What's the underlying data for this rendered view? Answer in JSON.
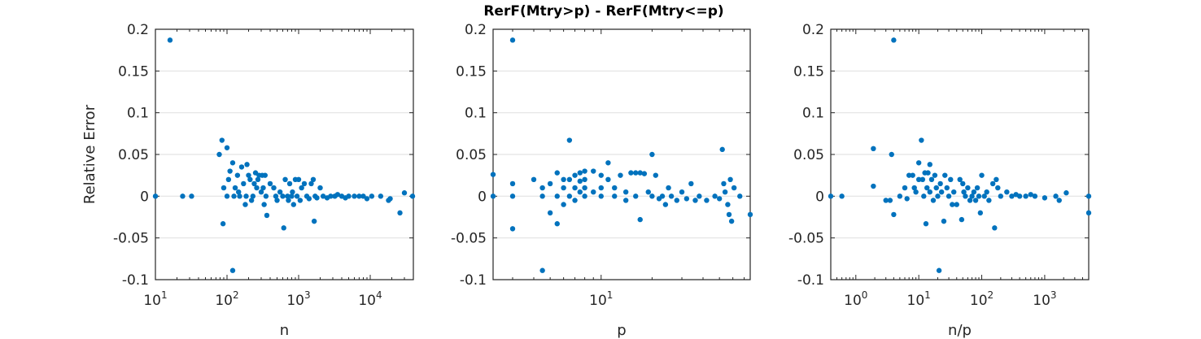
{
  "figure": {
    "title": "RerF(Mtry>p) - RerF(Mtry<=p)",
    "ylabel": "Relative Error"
  },
  "chart_data": [
    {
      "type": "scatter",
      "xlabel": "n",
      "ylabel": "Relative Error",
      "xscale": "log",
      "xlim": [
        10,
        40000
      ],
      "ylim": [
        -0.1,
        0.2
      ],
      "yticks": [
        "-0.1",
        "-0.05",
        "0",
        "0.05",
        "0.1",
        "0.15",
        "0.2"
      ],
      "xticks": [
        {
          "base": "10",
          "exp": "1",
          "value": 10
        },
        {
          "base": "10",
          "exp": "2",
          "value": 100
        },
        {
          "base": "10",
          "exp": "3",
          "value": 1000
        },
        {
          "base": "10",
          "exp": "4",
          "value": 10000
        }
      ],
      "grid": "y-major",
      "marker_color": "#0072BD",
      "points": [
        [
          10,
          0
        ],
        [
          16,
          0.187
        ],
        [
          24,
          0
        ],
        [
          32,
          0
        ],
        [
          78,
          0.05
        ],
        [
          85,
          0.067
        ],
        [
          90,
          0.01
        ],
        [
          88,
          -0.033
        ],
        [
          100,
          0.058
        ],
        [
          100,
          0
        ],
        [
          105,
          0.02
        ],
        [
          110,
          0.03
        ],
        [
          120,
          0.04
        ],
        [
          120,
          -0.089
        ],
        [
          125,
          0
        ],
        [
          130,
          0.01
        ],
        [
          140,
          0.025
        ],
        [
          145,
          0.005
        ],
        [
          150,
          0
        ],
        [
          160,
          0.035
        ],
        [
          170,
          0.015
        ],
        [
          180,
          -0.01
        ],
        [
          185,
          0
        ],
        [
          190,
          0.038
        ],
        [
          200,
          0.025
        ],
        [
          210,
          0.02
        ],
        [
          220,
          -0.005
        ],
        [
          230,
          0
        ],
        [
          240,
          0.015
        ],
        [
          250,
          0.028
        ],
        [
          260,
          0.01
        ],
        [
          270,
          0.02
        ],
        [
          280,
          0.025
        ],
        [
          300,
          0.005
        ],
        [
          310,
          0.025
        ],
        [
          320,
          0.01
        ],
        [
          330,
          -0.01
        ],
        [
          340,
          0.025
        ],
        [
          350,
          0
        ],
        [
          360,
          -0.023
        ],
        [
          400,
          0.015
        ],
        [
          450,
          0.01
        ],
        [
          480,
          0
        ],
        [
          500,
          -0.005
        ],
        [
          550,
          0.005
        ],
        [
          600,
          0
        ],
        [
          620,
          -0.038
        ],
        [
          650,
          0.02
        ],
        [
          700,
          0
        ],
        [
          720,
          -0.005
        ],
        [
          750,
          0.015
        ],
        [
          800,
          0
        ],
        [
          820,
          0.005
        ],
        [
          850,
          -0.01
        ],
        [
          900,
          0.02
        ],
        [
          950,
          0
        ],
        [
          1000,
          0.02
        ],
        [
          1050,
          -0.005
        ],
        [
          1100,
          0.01
        ],
        [
          1200,
          0.015
        ],
        [
          1300,
          0
        ],
        [
          1400,
          -0.003
        ],
        [
          1500,
          0.015
        ],
        [
          1600,
          0.02
        ],
        [
          1650,
          -0.03
        ],
        [
          1700,
          0
        ],
        [
          1800,
          -0.002
        ],
        [
          2000,
          0.01
        ],
        [
          2200,
          0
        ],
        [
          2500,
          -0.002
        ],
        [
          2800,
          0
        ],
        [
          3200,
          0
        ],
        [
          3500,
          0.002
        ],
        [
          4000,
          0
        ],
        [
          4500,
          -0.002
        ],
        [
          5000,
          0
        ],
        [
          6000,
          0
        ],
        [
          7000,
          0
        ],
        [
          8000,
          0
        ],
        [
          9000,
          -0.003
        ],
        [
          10500,
          0
        ],
        [
          14000,
          0
        ],
        [
          18000,
          -0.005
        ],
        [
          19000,
          -0.003
        ],
        [
          26000,
          -0.02
        ],
        [
          30000,
          0.004
        ],
        [
          39000,
          0
        ]
      ]
    },
    {
      "type": "scatter",
      "xlabel": "p",
      "xscale": "log",
      "xlim": [
        2.3,
        76
      ],
      "ylim": [
        -0.1,
        0.2
      ],
      "yticks": [
        "-0.1",
        "-0.05",
        "0",
        "0.05",
        "0.1",
        "0.15",
        "0.2"
      ],
      "xticks": [
        {
          "base": "10",
          "exp": "1",
          "value": 10
        }
      ],
      "grid": "y-major",
      "marker_color": "#0072BD",
      "points": [
        [
          2.3,
          0.026
        ],
        [
          2.3,
          0
        ],
        [
          3.0,
          0.187
        ],
        [
          3.0,
          0.015
        ],
        [
          3.0,
          0
        ],
        [
          3.0,
          -0.039
        ],
        [
          4.0,
          0.02
        ],
        [
          4.5,
          0.01
        ],
        [
          4.5,
          0
        ],
        [
          4.5,
          -0.089
        ],
        [
          5.0,
          0.015
        ],
        [
          5.0,
          -0.02
        ],
        [
          5.5,
          0.028
        ],
        [
          5.5,
          0
        ],
        [
          5.5,
          -0.033
        ],
        [
          6.0,
          0.02
        ],
        [
          6.0,
          0.01
        ],
        [
          6.0,
          -0.01
        ],
        [
          6.5,
          0.067
        ],
        [
          6.5,
          0.02
        ],
        [
          6.5,
          0
        ],
        [
          7.0,
          0.025
        ],
        [
          7.0,
          0.01
        ],
        [
          7.0,
          -0.005
        ],
        [
          7.5,
          0.028
        ],
        [
          7.5,
          0.018
        ],
        [
          7.5,
          0.005
        ],
        [
          8.0,
          0.03
        ],
        [
          8.0,
          0.02
        ],
        [
          8.0,
          0.01
        ],
        [
          8.0,
          0
        ],
        [
          9.0,
          0.03
        ],
        [
          9.0,
          0.005
        ],
        [
          10.0,
          0.025
        ],
        [
          10.0,
          0.01
        ],
        [
          10.0,
          0.0
        ],
        [
          11.0,
          0.04
        ],
        [
          11.0,
          0.02
        ],
        [
          12.0,
          0.01
        ],
        [
          12.0,
          0
        ],
        [
          13.0,
          0.025
        ],
        [
          14.0,
          0.005
        ],
        [
          14.0,
          -0.005
        ],
        [
          15.0,
          0.028
        ],
        [
          16.0,
          0.028
        ],
        [
          16.0,
          0
        ],
        [
          17.0,
          -0.028
        ],
        [
          17.0,
          0.028
        ],
        [
          18.0,
          0.027
        ],
        [
          19.0,
          0.005
        ],
        [
          20.0,
          0.05
        ],
        [
          20.0,
          0
        ],
        [
          21.0,
          0.025
        ],
        [
          22.0,
          -0.003
        ],
        [
          23.0,
          0
        ],
        [
          24.0,
          -0.01
        ],
        [
          25.0,
          0.01
        ],
        [
          26.0,
          0
        ],
        [
          28.0,
          -0.005
        ],
        [
          30.0,
          0.005
        ],
        [
          32.0,
          -0.003
        ],
        [
          34.0,
          0.015
        ],
        [
          36.0,
          -0.005
        ],
        [
          38.0,
          0
        ],
        [
          42.0,
          -0.005
        ],
        [
          47.0,
          0
        ],
        [
          50.0,
          -0.003
        ],
        [
          52.0,
          0.056
        ],
        [
          53.0,
          0.015
        ],
        [
          54.0,
          0.005
        ],
        [
          56.0,
          -0.01
        ],
        [
          57.0,
          -0.022
        ],
        [
          58.0,
          0.02
        ],
        [
          59.0,
          -0.03
        ],
        [
          61.0,
          0.01
        ],
        [
          66.0,
          0
        ],
        [
          76.0,
          -0.022
        ]
      ]
    },
    {
      "type": "scatter",
      "xlabel": "n/p",
      "xscale": "log",
      "xlim": [
        0.4,
        5000
      ],
      "ylim": [
        -0.1,
        0.2
      ],
      "yticks": [
        "-0.1",
        "-0.05",
        "0",
        "0.05",
        "0.1",
        "0.15",
        "0.2"
      ],
      "xticks": [
        {
          "base": "10",
          "exp": "0",
          "value": 1
        },
        {
          "base": "10",
          "exp": "1",
          "value": 10
        },
        {
          "base": "10",
          "exp": "2",
          "value": 100
        },
        {
          "base": "10",
          "exp": "3",
          "value": 1000
        }
      ],
      "grid": "y-major",
      "marker_color": "#0072BD",
      "points": [
        [
          0.4,
          0
        ],
        [
          0.6,
          0
        ],
        [
          1.9,
          0.012
        ],
        [
          1.9,
          0.057
        ],
        [
          3.0,
          -0.005
        ],
        [
          3.5,
          -0.005
        ],
        [
          3.7,
          0.05
        ],
        [
          4.0,
          0.187
        ],
        [
          4.0,
          -0.022
        ],
        [
          5.0,
          0
        ],
        [
          6.0,
          0.01
        ],
        [
          6.5,
          -0.003
        ],
        [
          7.0,
          0.025
        ],
        [
          8.0,
          0.025
        ],
        [
          8.5,
          0.01
        ],
        [
          9.0,
          0.005
        ],
        [
          10.0,
          0.04
        ],
        [
          10.0,
          0.02
        ],
        [
          11.0,
          0.067
        ],
        [
          11.5,
          0.02
        ],
        [
          12.0,
          0
        ],
        [
          12.5,
          0.028
        ],
        [
          13.0,
          -0.033
        ],
        [
          13.5,
          0.01
        ],
        [
          14.0,
          0.028
        ],
        [
          15.0,
          0.038
        ],
        [
          15.0,
          0.005
        ],
        [
          16.0,
          0.02
        ],
        [
          17.0,
          -0.005
        ],
        [
          18.0,
          0.025
        ],
        [
          19.0,
          0.01
        ],
        [
          20.0,
          0
        ],
        [
          21.0,
          -0.089
        ],
        [
          22.0,
          0.015
        ],
        [
          23.0,
          0.005
        ],
        [
          25.0,
          -0.03
        ],
        [
          26.0,
          0.025
        ],
        [
          28.0,
          0.01
        ],
        [
          30.0,
          0
        ],
        [
          32.0,
          0.02
        ],
        [
          34.0,
          -0.01
        ],
        [
          36.0,
          0.005
        ],
        [
          40.0,
          -0.01
        ],
        [
          45.0,
          0.02
        ],
        [
          48.0,
          -0.028
        ],
        [
          50.0,
          0.015
        ],
        [
          52.0,
          0.005
        ],
        [
          55.0,
          0
        ],
        [
          60.0,
          0.01
        ],
        [
          65.0,
          -0.005
        ],
        [
          70.0,
          0
        ],
        [
          75.0,
          0.005
        ],
        [
          80.0,
          -0.005
        ],
        [
          85.0,
          0.01
        ],
        [
          90.0,
          0
        ],
        [
          95.0,
          -0.02
        ],
        [
          100.0,
          0.025
        ],
        [
          110.0,
          0
        ],
        [
          120.0,
          0.005
        ],
        [
          130.0,
          -0.005
        ],
        [
          150.0,
          0.015
        ],
        [
          160.0,
          -0.038
        ],
        [
          170.0,
          0.02
        ],
        [
          180.0,
          0.01
        ],
        [
          200.0,
          0
        ],
        [
          250.0,
          0.005
        ],
        [
          300.0,
          0
        ],
        [
          350.0,
          0.002
        ],
        [
          400.0,
          0
        ],
        [
          500.0,
          0
        ],
        [
          600.0,
          0.002
        ],
        [
          700.0,
          0
        ],
        [
          1000.0,
          -0.002
        ],
        [
          1500.0,
          0
        ],
        [
          1700.0,
          -0.005
        ],
        [
          2200.0,
          0.004
        ],
        [
          5000.0,
          0
        ],
        [
          5000.0,
          -0.02
        ]
      ]
    }
  ]
}
